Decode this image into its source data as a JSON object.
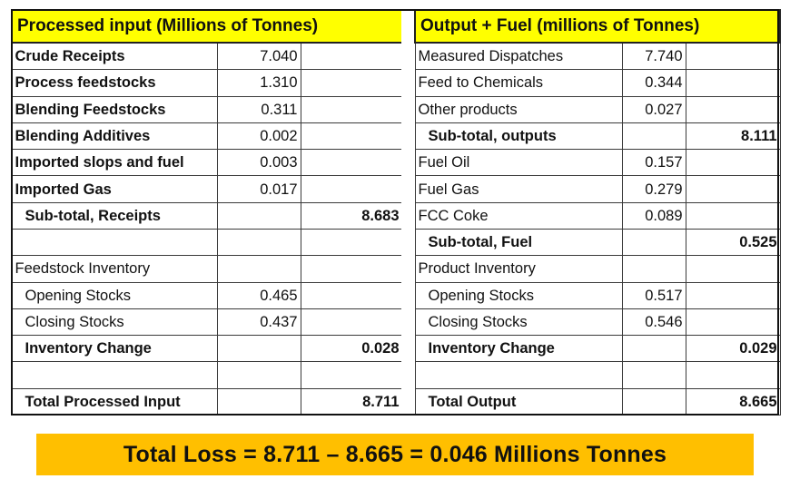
{
  "colors": {
    "header_background": "#ffff00",
    "banner_background": "#ffbf00",
    "grid_lines": "#3a3a3a"
  },
  "left_table": {
    "title": "Processed input (Millions of Tonnes)",
    "rows": [
      {
        "label": "Crude Receipts",
        "value": "7.040",
        "total": ""
      },
      {
        "label": "Process feedstocks",
        "value": "1.310",
        "total": ""
      },
      {
        "label": "Blending Feedstocks",
        "value": "0.311",
        "total": ""
      },
      {
        "label": "Blending Additives",
        "value": "0.002",
        "total": ""
      },
      {
        "label": "Imported slops and fuel",
        "value": "0.003",
        "total": ""
      },
      {
        "label": "Imported Gas",
        "value": "0.017",
        "total": ""
      },
      {
        "label": "Sub-total, Receipts",
        "value": "",
        "total": "8.683"
      },
      {
        "label": "",
        "value": "",
        "total": ""
      },
      {
        "label": "Feedstock Inventory",
        "value": "",
        "total": ""
      },
      {
        "label": "Opening Stocks",
        "value": "0.465",
        "total": ""
      },
      {
        "label": "Closing Stocks",
        "value": "0.437",
        "total": ""
      },
      {
        "label": "Inventory Change",
        "value": "",
        "total": "0.028"
      },
      {
        "label": "",
        "value": "",
        "total": ""
      },
      {
        "label": "Total Processed Input",
        "value": "",
        "total": "8.711"
      }
    ]
  },
  "right_table": {
    "title": "Output + Fuel (millions of Tonnes)",
    "rows": [
      {
        "label": "Measured Dispatches",
        "value": "7.740",
        "total": ""
      },
      {
        "label": "Feed to Chemicals",
        "value": "0.344",
        "total": ""
      },
      {
        "label": "Other products",
        "value": "0.027",
        "total": ""
      },
      {
        "label": "Sub-total, outputs",
        "value": "",
        "total": "8.111"
      },
      {
        "label": "Fuel Oil",
        "value": "0.157",
        "total": ""
      },
      {
        "label": "Fuel Gas",
        "value": "0.279",
        "total": ""
      },
      {
        "label": "FCC Coke",
        "value": "0.089",
        "total": ""
      },
      {
        "label": "Sub-total, Fuel",
        "value": "",
        "total": "0.525"
      },
      {
        "label": "Product Inventory",
        "value": "",
        "total": ""
      },
      {
        "label": "Opening Stocks",
        "value": "0.517",
        "total": ""
      },
      {
        "label": "Closing Stocks",
        "value": "0.546",
        "total": ""
      },
      {
        "label": "Inventory Change",
        "value": "",
        "total": "0.029"
      },
      {
        "label": "",
        "value": "",
        "total": ""
      },
      {
        "label": "Total Output",
        "value": "",
        "total": "8.665"
      }
    ]
  },
  "banner": {
    "text": "Total Loss = 8.711 – 8.665 = 0.046 Millions Tonnes"
  }
}
